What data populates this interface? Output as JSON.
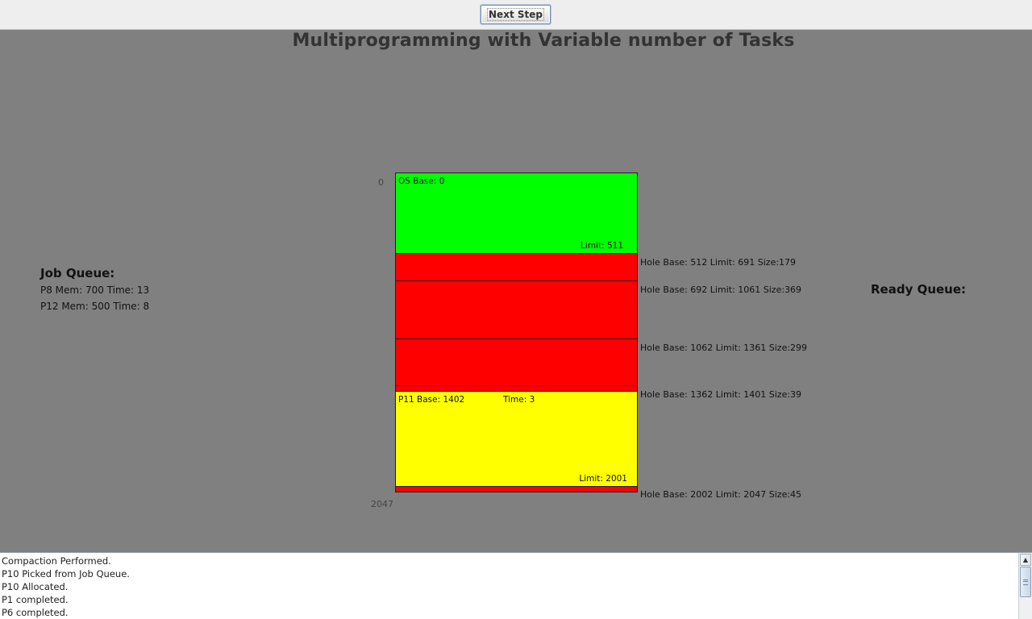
{
  "toolbar": {
    "next_step_label": "Next Step"
  },
  "title": "Multiprogramming with Variable number of Tasks",
  "axis": {
    "top_label": "0",
    "bottom_label": "2047"
  },
  "job_queue": {
    "heading": "Job Queue:",
    "items": [
      "P8 Mem: 700 Time: 13",
      "P12 Mem: 500 Time: 8"
    ]
  },
  "ready_queue": {
    "heading": "Ready Queue:"
  },
  "memory": {
    "os_block": {
      "base_label": "OS Base: 0",
      "limit_label": "Limit: 511",
      "color": "#00ff00"
    },
    "process_block": {
      "base_label": "P11 Base: 1402",
      "time_label": "Time: 3",
      "limit_label": "Limit: 2001",
      "color": "#ffff00"
    },
    "hole_color": "#ff0000",
    "holes": [
      "Hole Base: 512 Limit: 691 Size:179",
      "Hole Base: 692 Limit: 1061 Size:369",
      "Hole Base: 1062 Limit: 1361 Size:299",
      "Hole Base: 1362 Limit: 1401 Size:39",
      "Hole Base: 2002 Limit: 2047 Size:45"
    ]
  },
  "log": {
    "lines": [
      "Compaction Performed.",
      "P10 Picked from Job Queue.",
      "P10 Allocated.",
      "P1 completed.",
      "P6 completed."
    ]
  },
  "colors": {
    "canvas_background": "#808080",
    "toolbar_background": "#eeeeee",
    "title_text": "#333333"
  }
}
